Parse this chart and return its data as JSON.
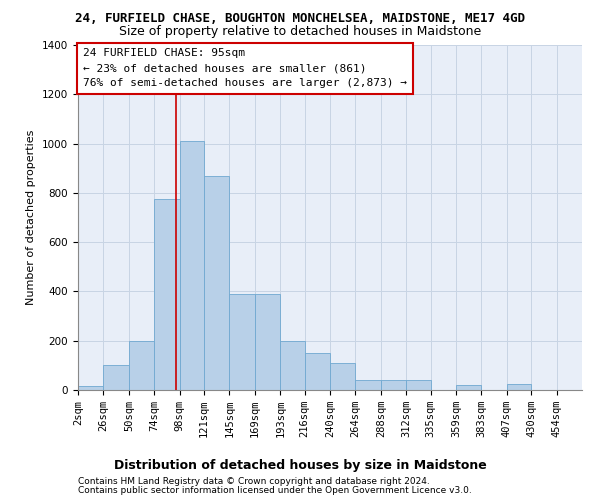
{
  "title1": "24, FURFIELD CHASE, BOUGHTON MONCHELSEA, MAIDSTONE, ME17 4GD",
  "title2": "Size of property relative to detached houses in Maidstone",
  "xlabel": "Distribution of detached houses by size in Maidstone",
  "ylabel": "Number of detached properties",
  "footer1": "Contains HM Land Registry data © Crown copyright and database right 2024.",
  "footer2": "Contains public sector information licensed under the Open Government Licence v3.0.",
  "annotation_title": "24 FURFIELD CHASE: 95sqm",
  "annotation_line2": "← 23% of detached houses are smaller (861)",
  "annotation_line3": "76% of semi-detached houses are larger (2,873) →",
  "property_size": 95,
  "bins_start": [
    2,
    26,
    50,
    74,
    98,
    121,
    145,
    169,
    193,
    216,
    240,
    264,
    288,
    312,
    335,
    359,
    383,
    407,
    430,
    454,
    478
  ],
  "bar_heights": [
    15,
    100,
    200,
    775,
    1010,
    870,
    390,
    390,
    200,
    150,
    110,
    40,
    40,
    40,
    0,
    20,
    0,
    25,
    0,
    0,
    0
  ],
  "bar_color": "#b8d0e8",
  "bar_edge_color": "#6fa8d0",
  "vline_color": "#cc0000",
  "vline_x": 95,
  "box_color": "#cc0000",
  "ylim": [
    0,
    1400
  ],
  "yticks": [
    0,
    200,
    400,
    600,
    800,
    1000,
    1200,
    1400
  ],
  "grid_color": "#c8d4e4",
  "bg_color": "#e8eef8",
  "title1_fontsize": 9,
  "title2_fontsize": 9,
  "xlabel_fontsize": 9,
  "ylabel_fontsize": 8,
  "tick_fontsize": 7.5,
  "footer_fontsize": 6.5,
  "annotation_fontsize": 8
}
